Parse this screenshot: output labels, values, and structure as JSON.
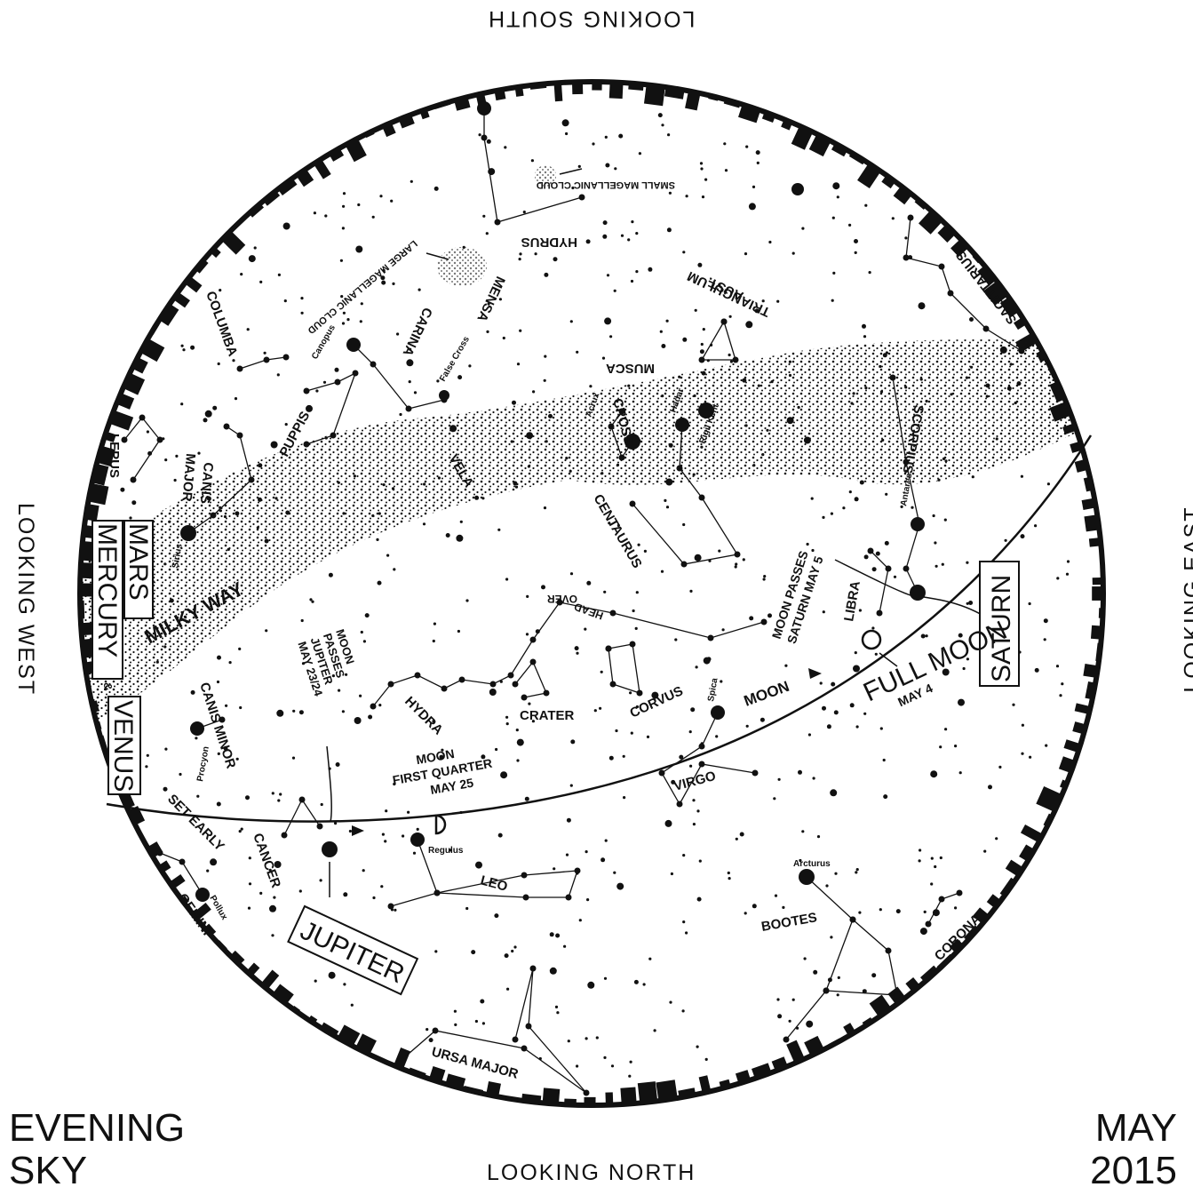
{
  "directions": {
    "south": "LOOKING SOUTH",
    "north": "LOOKING NORTH",
    "west": "LOOKING WEST",
    "east": "LOOKING EAST"
  },
  "corner": {
    "title_line1": "EVENING",
    "title_line2": "SKY",
    "month": "MAY",
    "year": "2015"
  },
  "constellations": {
    "hydrus": "HYDRUS",
    "smc": "SMALL MAGELLANIC CLOUD",
    "lmc": "LARGE MAGELLANIC CLOUD",
    "mensa": "MENSA",
    "triangulum_line1": "TRIANGULUM",
    "triangulum_line2": "AUST.",
    "sagittarius": "SAGITTARIUS",
    "columba": "COLUMBA",
    "carina": "CARINA",
    "musca": "MUSCA",
    "puppis": "PUPPIS",
    "lepus": "LEPUS",
    "canis_major_line1": "CANIS",
    "canis_major_line2": "MAJOR",
    "vela": "VELA",
    "cross": "CROSS",
    "centaurus": "CENTAURUS",
    "scorpius": "SCORPIUS",
    "milky_way": "MILKY WAY",
    "libra": "LIBRA",
    "hydra": "HYDRA",
    "crater": "CRATER",
    "corvus": "CORVUS",
    "over_head_line1": "OVER",
    "over_head_line2": "HEAD",
    "canis_minor": "CANIS MINOR",
    "virgo": "VIRGO",
    "cancer": "CANCER",
    "leo": "LEO",
    "gemini": "GEMINI",
    "bootes": "BOOTES",
    "corona": "CORONA",
    "ursa_major": "URSA MAJOR"
  },
  "stars": {
    "canopus": "Canopus",
    "false_cross": "False Cross",
    "acrux": "Acrux",
    "hadar": "Hadar",
    "rigil_kent": "Rigil Kent",
    "antares": "Antares",
    "sirius": "Sirius",
    "procyon": "Procyon",
    "spica": "Spica",
    "regulus": "Regulus",
    "pollux": "Pollux",
    "arcturus": "Arcturus"
  },
  "planets": {
    "mars": "MARS",
    "mercury": "MERCURY",
    "amp": "&",
    "venus": "VENUS",
    "set_early": "SET EARLY",
    "saturn": "SATURN",
    "jupiter": "JUPITER",
    "moon": "MOON"
  },
  "events": {
    "moon_saturn_line1": "MOON PASSES",
    "moon_saturn_line2": "SATURN MAY 5",
    "full_moon_line1": "FULL MOON",
    "full_moon_line2": "MAY 4",
    "moon_jupiter_line1": "MOON",
    "moon_jupiter_line2": "PASSES",
    "moon_jupiter_line3": "JUPITER",
    "moon_jupiter_line4": "MAY 23/24",
    "first_quarter_line1": "MOON",
    "first_quarter_line2": "FIRST QUARTER",
    "first_quarter_line3": "MAY 25"
  },
  "colors": {
    "ink": "#111111",
    "background": "#ffffff"
  }
}
